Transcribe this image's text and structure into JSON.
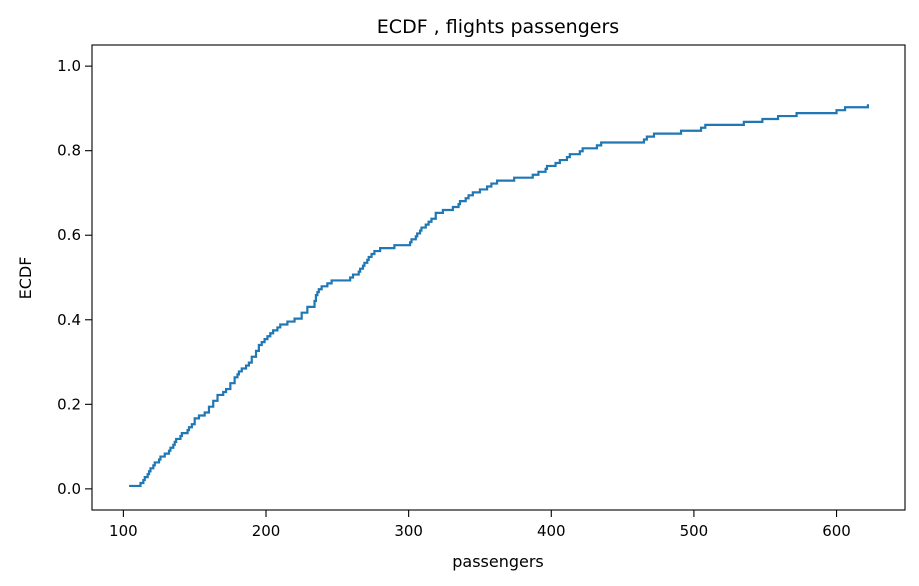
{
  "chart_data": {
    "type": "line",
    "subtype": "ecdf-step",
    "title": "ECDF , flights passengers",
    "xlabel": "passengers",
    "ylabel": "ECDF",
    "xlim": [
      78,
      648
    ],
    "ylim": [
      -0.05,
      1.05
    ],
    "xticks": [
      100,
      200,
      300,
      400,
      500,
      600
    ],
    "yticks": [
      0.0,
      0.2,
      0.4,
      0.6,
      0.8,
      1.0
    ],
    "xtick_labels": [
      "100",
      "200",
      "300",
      "400",
      "500",
      "600"
    ],
    "ytick_labels": [
      "0.0",
      "0.2",
      "0.4",
      "0.6",
      "0.8",
      "1.0"
    ],
    "grid": false,
    "line_color": "#1f77b4",
    "series": [
      {
        "x": [
          104,
          112,
          114,
          115,
          117,
          118,
          119,
          121,
          122,
          125,
          126,
          129,
          132,
          133,
          135,
          136,
          137,
          140,
          141,
          145,
          146,
          148,
          150,
          153,
          157,
          160,
          163,
          166,
          170,
          172,
          175,
          178,
          180,
          181,
          183,
          186,
          188,
          190,
          193,
          195,
          197,
          199,
          201,
          203,
          205,
          208,
          210,
          215,
          220,
          225,
          229,
          234,
          235,
          236,
          237,
          239,
          243,
          246,
          259,
          261,
          265,
          266,
          268,
          269,
          271,
          272,
          274,
          276,
          280,
          290,
          301,
          302,
          305,
          306,
          308,
          309,
          312,
          314,
          316,
          319,
          324,
          331,
          335,
          336,
          340,
          342,
          345,
          350,
          355,
          358,
          362,
          374,
          387,
          391,
          396,
          397,
          403,
          406,
          411,
          413,
          420,
          422,
          432,
          435,
          465,
          467,
          472,
          491,
          505,
          508,
          535,
          548,
          559,
          572,
          600,
          606,
          622
        ],
        "y": [
          0.0069,
          0.0139,
          0.0208,
          0.0278,
          0.0347,
          0.0417,
          0.0486,
          0.0556,
          0.0625,
          0.0694,
          0.0764,
          0.0833,
          0.0903,
          0.0972,
          0.1042,
          0.1111,
          0.1181,
          0.125,
          0.1319,
          0.1389,
          0.1458,
          0.1528,
          0.1667,
          0.1736,
          0.1806,
          0.1944,
          0.2083,
          0.2222,
          0.2292,
          0.2361,
          0.25,
          0.2639,
          0.2708,
          0.2778,
          0.2847,
          0.2917,
          0.2986,
          0.3125,
          0.3264,
          0.3403,
          0.3472,
          0.3542,
          0.3611,
          0.3681,
          0.375,
          0.3819,
          0.3889,
          0.3958,
          0.4028,
          0.4167,
          0.4306,
          0.4444,
          0.4583,
          0.4653,
          0.4722,
          0.4792,
          0.4861,
          0.4931,
          0.5,
          0.5069,
          0.5139,
          0.5208,
          0.5278,
          0.5347,
          0.5417,
          0.5486,
          0.5556,
          0.5625,
          0.5694,
          0.5764,
          0.5833,
          0.5903,
          0.5972,
          0.6042,
          0.6111,
          0.6181,
          0.625,
          0.6319,
          0.6389,
          0.6528,
          0.6597,
          0.6667,
          0.6736,
          0.6806,
          0.6875,
          0.6944,
          0.7014,
          0.7083,
          0.7153,
          0.7222,
          0.7292,
          0.7361,
          0.7431,
          0.75,
          0.7569,
          0.7639,
          0.7708,
          0.7778,
          0.7847,
          0.7917,
          0.7986,
          0.8056,
          0.8125,
          0.8194,
          0.8264,
          0.8333,
          0.8403,
          0.8472,
          0.8542,
          0.8611,
          0.8681,
          0.875,
          0.8819,
          0.8889,
          0.8958,
          0.9028,
          0.9097
        ]
      }
    ]
  }
}
